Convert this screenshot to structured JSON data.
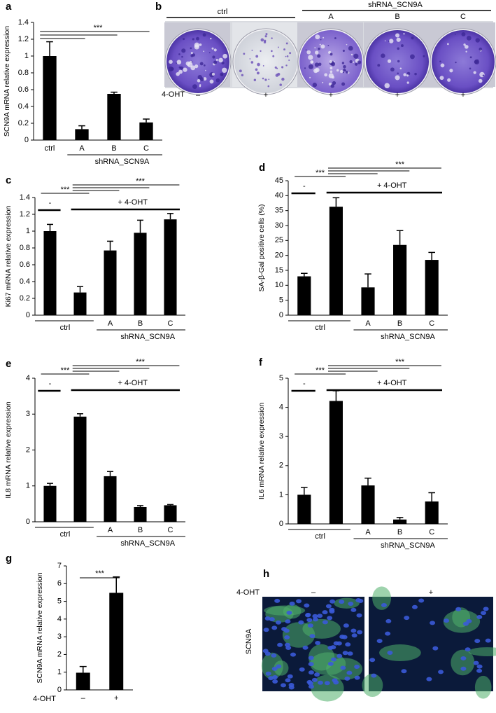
{
  "chart_data": [
    {
      "type": "bar",
      "panel": "a",
      "ylabel": "SCN9A mRNA relative expression",
      "categories": [
        "ctrl",
        "A",
        "B",
        "C"
      ],
      "groups": [
        "shRNA_SCN9A"
      ],
      "values": [
        1.0,
        0.13,
        0.55,
        0.21
      ],
      "errors": [
        0.17,
        0.04,
        0.02,
        0.04
      ],
      "significance": [
        "***"
      ],
      "color": "#000000",
      "ylim": [
        0,
        1.4
      ],
      "yticks": [
        0,
        0.2,
        0.4,
        0.6,
        0.8,
        1,
        1.2,
        1.4
      ]
    },
    {
      "type": "image",
      "panel": "b",
      "groups": [
        "ctrl",
        "shRNA_SCN9A"
      ],
      "categories": [
        "A",
        "B",
        "C"
      ],
      "treatment_label": "4-OHT",
      "treatment": [
        "–",
        "+",
        "+",
        "+",
        "+"
      ]
    },
    {
      "type": "bar",
      "panel": "c",
      "ylabel": "Ki67 mRNA relative expression",
      "categories": [
        null,
        null,
        "A",
        "B",
        "C"
      ],
      "groups": [
        "ctrl",
        "shRNA_SCN9A"
      ],
      "treatment": [
        "-",
        "+ 4-OHT"
      ],
      "values": [
        1.0,
        0.27,
        0.77,
        0.98,
        1.14
      ],
      "errors": [
        0.08,
        0.07,
        0.11,
        0.15,
        0.07
      ],
      "significance": [
        "***",
        "***"
      ],
      "color": "#000000",
      "ylim": [
        0,
        1.4
      ],
      "yticks": [
        0,
        0.2,
        0.4,
        0.6,
        0.8,
        1,
        1.2,
        1.4
      ]
    },
    {
      "type": "bar",
      "panel": "d",
      "ylabel": "SA-β-Gal positive cells  (%)",
      "categories": [
        null,
        null,
        "A",
        "B",
        "C"
      ],
      "groups": [
        "ctrl",
        "shRNA_SCN9A"
      ],
      "treatment": [
        "-",
        "+ 4-OHT"
      ],
      "values": [
        13,
        36.3,
        9.3,
        23.5,
        18.5
      ],
      "errors": [
        1,
        3,
        4.5,
        4.8,
        2.5
      ],
      "significance": [
        "***",
        "***"
      ],
      "color": "#000000",
      "ylim": [
        0,
        45
      ],
      "yticks": [
        0,
        5,
        10,
        15,
        20,
        25,
        30,
        35,
        40,
        45
      ]
    },
    {
      "type": "bar",
      "panel": "e",
      "ylabel": "IL8 mRNA relative expression",
      "categories": [
        null,
        null,
        "A",
        "B",
        "C"
      ],
      "groups": [
        "ctrl",
        "shRNA_SCN9A"
      ],
      "treatment": [
        "-",
        "+ 4-OHT"
      ],
      "values": [
        1.0,
        2.93,
        1.27,
        0.41,
        0.46
      ],
      "errors": [
        0.07,
        0.08,
        0.13,
        0.04,
        0.02
      ],
      "significance": [
        "***",
        "***"
      ],
      "color": "#000000",
      "ylim": [
        0,
        4
      ],
      "yticks": [
        0,
        1,
        2,
        3,
        4
      ]
    },
    {
      "type": "bar",
      "panel": "f",
      "ylabel": "IL6 mRNA relative expression",
      "categories": [
        null,
        null,
        "A",
        "B",
        "C"
      ],
      "groups": [
        "ctrl",
        "shRNA_SCN9A"
      ],
      "treatment": [
        "-",
        "+ 4-OHT"
      ],
      "values": [
        1.0,
        4.22,
        1.32,
        0.15,
        0.77
      ],
      "errors": [
        0.25,
        0.35,
        0.25,
        0.07,
        0.3
      ],
      "significance": [
        "***",
        "***"
      ],
      "color": "#000000",
      "ylim": [
        0,
        5
      ],
      "yticks": [
        0,
        1,
        2,
        3,
        4,
        5
      ]
    },
    {
      "type": "bar",
      "panel": "g",
      "ylabel": "SCN9A mRNA relative expression",
      "xlabel": "4-OHT",
      "categories": [
        "–",
        "+"
      ],
      "values": [
        0.97,
        5.48
      ],
      "errors": [
        0.35,
        0.9
      ],
      "significance": [
        "***"
      ],
      "color": "#000000",
      "ylim": [
        0,
        7
      ],
      "yticks": [
        0,
        1,
        2,
        3,
        4,
        5,
        6,
        7
      ]
    },
    {
      "type": "image",
      "panel": "h",
      "ylabel": "SCN9A",
      "treatment_label": "4-OHT",
      "treatment": [
        "–",
        "+"
      ]
    }
  ]
}
